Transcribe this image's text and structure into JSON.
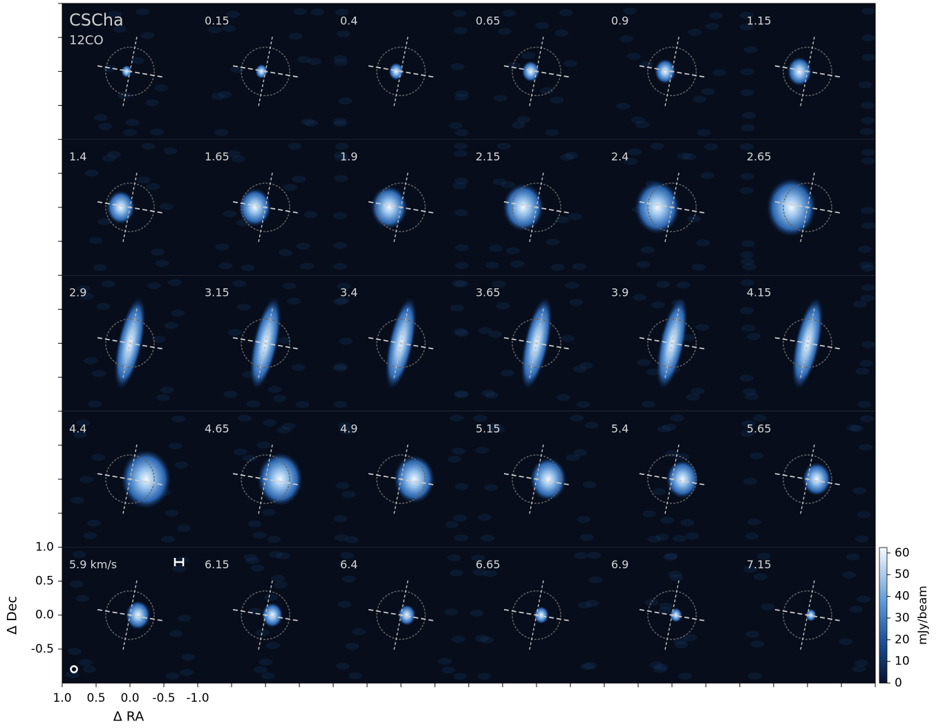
{
  "chart_data": {
    "type": "channel_map",
    "title": "CSCha",
    "subtitle": "12CO",
    "channels": [
      null,
      "0.15",
      "0.4",
      "0.65",
      "0.9",
      "1.15",
      "1.4",
      "1.65",
      "1.9",
      "2.15",
      "2.4",
      "2.65",
      "2.9",
      "3.15",
      "3.4",
      "3.65",
      "3.9",
      "4.15",
      "4.4",
      "4.65",
      "4.9",
      "5.15",
      "5.4",
      "5.65",
      "5.9 km/s",
      "6.15",
      "6.4",
      "6.65",
      "6.9",
      "7.15"
    ],
    "columns": 6,
    "xlabel": "Δ RA",
    "ylabel": "Δ Dec",
    "xlim": [
      1.0,
      -1.0
    ],
    "xticks": [
      {
        "value": 1.0,
        "label": "1.0"
      },
      0.5,
      {
        "value": 0.0,
        "label": "0.0"
      },
      -0.5,
      {
        "value": -1.0,
        "label": "-1.0"
      }
    ],
    "ylim": [
      -1.0,
      1.0
    ],
    "yticks": [
      {
        "value": 1.0,
        "label": "1.0"
      },
      0.5,
      {
        "value": 0.0,
        "label": "0.0"
      },
      -0.5
    ],
    "colorbar": {
      "label": "mJy/beam",
      "lim": [
        0,
        62.5
      ],
      "ticks": [
        0,
        10,
        20,
        30,
        40,
        50,
        60
      ]
    }
  }
}
